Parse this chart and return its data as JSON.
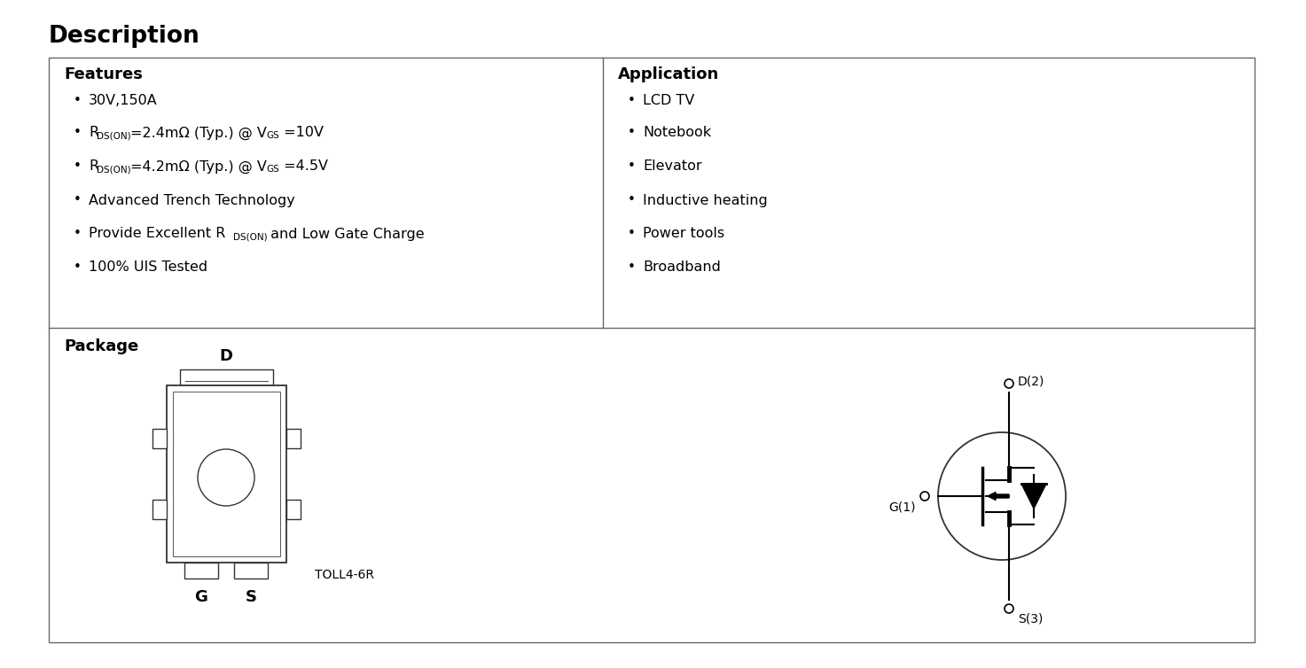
{
  "title": "Description",
  "features_header": "Features",
  "application_header": "Application",
  "application_items": [
    "LCD TV",
    "Notebook",
    "Elevator",
    "Inductive heating",
    "Power tools",
    "Broadband"
  ],
  "package_label": "Package",
  "package_type": "TOLL4-6R",
  "pin_d": "D",
  "pin_g": "G",
  "pin_s": "S",
  "schematic_d": "D(2)",
  "schematic_g": "G(1)",
  "schematic_s": "S(3)",
  "bg_color": "#ffffff",
  "text_color": "#000000",
  "border_color": "#666666"
}
